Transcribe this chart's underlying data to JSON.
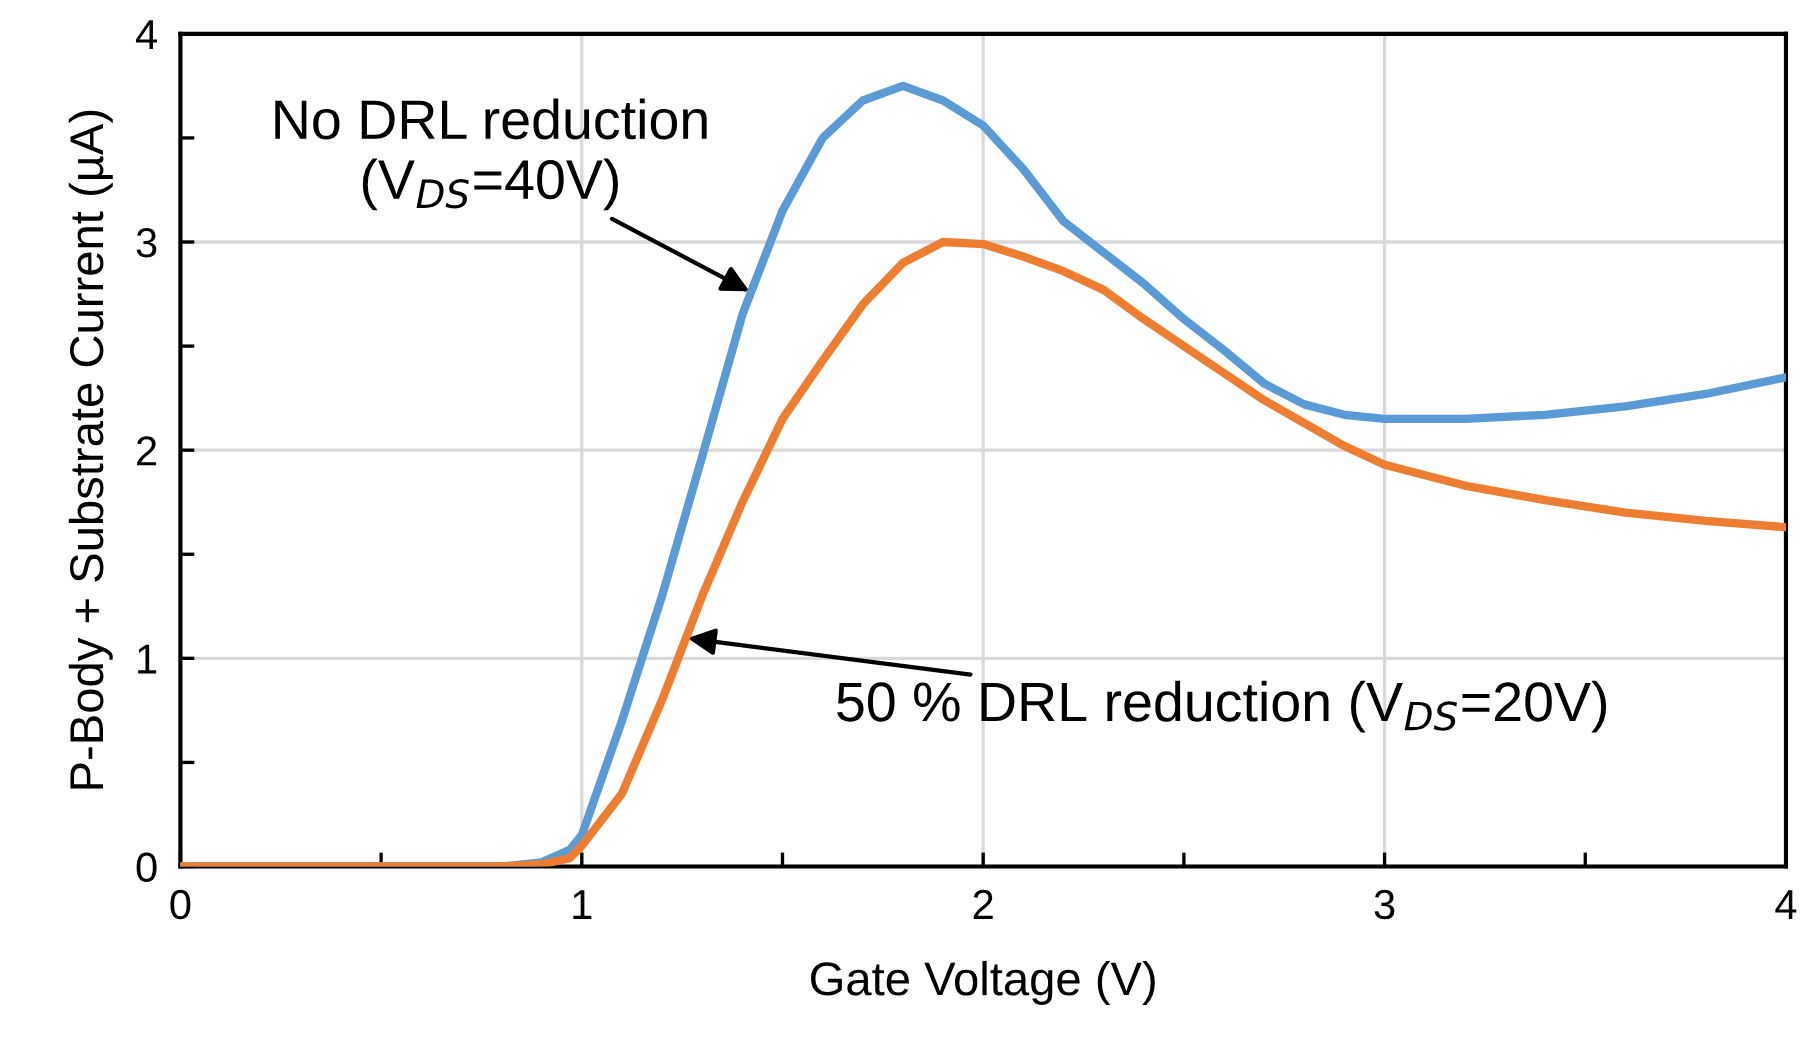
{
  "chart_data": {
    "type": "line",
    "xlabel": "Gate Voltage (V)",
    "ylabel": "P-Body + Substrate Current (µA)",
    "xlim": [
      0,
      4
    ],
    "ylim": [
      0,
      4
    ],
    "xticks": [
      0,
      {
        "value": 0.5,
        "label": null
      },
      1,
      {
        "value": 1.5,
        "label": null
      },
      2,
      {
        "value": 2.5,
        "label": null
      },
      3,
      {
        "value": 3.5,
        "label": null
      },
      4
    ],
    "yticks": [
      0,
      {
        "value": 0.5,
        "label": null
      },
      1,
      {
        "value": 1.5,
        "label": null
      },
      2,
      {
        "value": 2.5,
        "label": null
      },
      3,
      {
        "value": 3.5,
        "label": null
      },
      4
    ],
    "grid": true,
    "legend": false,
    "marker": "none",
    "line_style": "solid",
    "series": [
      {
        "color": "#5b9bd5",
        "x": [
          0,
          0.8,
          0.9,
          0.97,
          1.0,
          1.1,
          1.2,
          1.3,
          1.4,
          1.5,
          1.6,
          1.7,
          1.8,
          1.9,
          2.0,
          2.1,
          2.2,
          2.3,
          2.4,
          2.5,
          2.6,
          2.7,
          2.8,
          2.9,
          3.0,
          3.2,
          3.4,
          3.6,
          3.8,
          4.0
        ],
        "values": [
          0,
          0,
          0.02,
          0.08,
          0.15,
          0.7,
          1.3,
          1.97,
          2.65,
          3.15,
          3.5,
          3.68,
          3.75,
          3.68,
          3.56,
          3.35,
          3.1,
          2.95,
          2.8,
          2.63,
          2.48,
          2.32,
          2.22,
          2.17,
          2.15,
          2.15,
          2.17,
          2.21,
          2.27,
          2.35
        ]
      },
      {
        "color": "#ed7d31",
        "x": [
          0,
          0.8,
          0.9,
          0.97,
          1.0,
          1.1,
          1.2,
          1.3,
          1.4,
          1.5,
          1.6,
          1.7,
          1.8,
          1.9,
          2.0,
          2.1,
          2.2,
          2.3,
          2.4,
          2.5,
          2.6,
          2.7,
          2.8,
          2.9,
          3.0,
          3.2,
          3.4,
          3.6,
          3.8,
          4.0
        ],
        "values": [
          0,
          0,
          0.01,
          0.04,
          0.1,
          0.35,
          0.8,
          1.3,
          1.75,
          2.15,
          2.43,
          2.7,
          2.9,
          3.0,
          2.99,
          2.93,
          2.86,
          2.77,
          2.63,
          2.5,
          2.37,
          2.24,
          2.13,
          2.02,
          1.93,
          1.83,
          1.76,
          1.7,
          1.66,
          1.63
        ]
      }
    ],
    "annotations": [
      {
        "text": "No DRL reduction\n(V$_{DS}$=40V)",
        "x": 1.43,
        "y": 2.75
      },
      {
        "text": "50 % DRL reduction (V$_{DS}$=20V)",
        "x": 1.25,
        "y": 1.1
      }
    ]
  }
}
